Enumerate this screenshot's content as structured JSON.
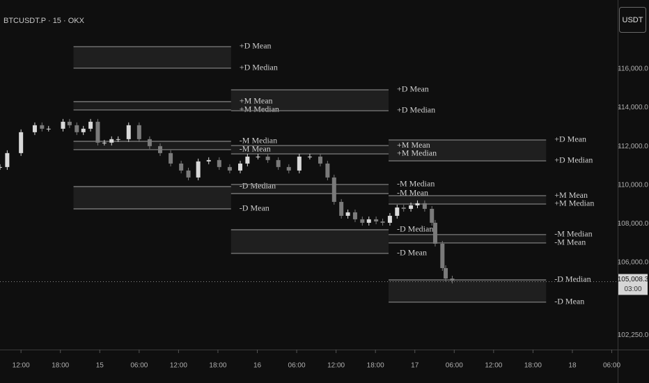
{
  "header": {
    "symbol": "BTCUSDT.P · 15 · OKX",
    "currency_button": "USDT"
  },
  "chart_data": {
    "type": "candlestick",
    "xlim": [
      -3.2,
      90.9
    ],
    "xticks": [
      {
        "value": 0,
        "label": "12:00"
      },
      {
        "value": 6,
        "label": "18:00"
      },
      {
        "value": 12,
        "label": "15"
      },
      {
        "value": 18,
        "label": "06:00"
      },
      {
        "value": 24,
        "label": "12:00"
      },
      {
        "value": 30,
        "label": "18:00"
      },
      {
        "value": 36,
        "label": "16"
      },
      {
        "value": 42,
        "label": "06:00"
      },
      {
        "value": 48,
        "label": "12:00"
      },
      {
        "value": 54,
        "label": "18:00"
      },
      {
        "value": 60,
        "label": "17"
      },
      {
        "value": 66,
        "label": "06:00"
      },
      {
        "value": 72,
        "label": "12:00"
      },
      {
        "value": 78,
        "label": "18:00"
      },
      {
        "value": 84,
        "label": "18"
      },
      {
        "value": 90,
        "label": "06:00"
      }
    ],
    "ylim": [
      101500,
      119560
    ],
    "yticks": [
      {
        "value": 102250,
        "label": "102,250.0"
      },
      {
        "value": 106000,
        "label": "106,000.0"
      },
      {
        "value": 108000,
        "label": "108,000.0"
      },
      {
        "value": 110000,
        "label": "110,000.0"
      },
      {
        "value": 112000,
        "label": "112,000.0"
      },
      {
        "value": 114000,
        "label": "114,000.0"
      },
      {
        "value": 116000,
        "label": "116,000.0"
      }
    ],
    "up_color": "#d9d9d9",
    "down_color": "#7a7a7a",
    "level_color": "#7d7d7d",
    "x": [
      -3.2,
      -2.1,
      0,
      2.1,
      3.2,
      4.2,
      6.4,
      7.4,
      8.5,
      9.5,
      10.6,
      11.7,
      12.7,
      13.8,
      14.8,
      16.4,
      18.0,
      19.6,
      21.2,
      22.8,
      24.4,
      25.5,
      27.0,
      28.6,
      30.2,
      31.8,
      33.4,
      34.5,
      36.1,
      37.6,
      39.2,
      40.8,
      42.4,
      44.0,
      45.6,
      46.7,
      47.7,
      48.8,
      49.8,
      50.9,
      52.0,
      53.0,
      54.1,
      55.1,
      56.2,
      57.3,
      58.3,
      59.4,
      60.4,
      61.5,
      62.6,
      63.1,
      64.2,
      64.7,
      65.7
    ],
    "close": [
      110930,
      111650,
      112730,
      113090,
      112910,
      112910,
      113270,
      113090,
      112730,
      112910,
      113270,
      112190,
      112190,
      112370,
      112370,
      113090,
      112370,
      112010,
      111650,
      111110,
      110750,
      110390,
      111220,
      111290,
      110930,
      110750,
      111110,
      111470,
      111470,
      111290,
      110930,
      110750,
      111470,
      111470,
      111110,
      110390,
      109130,
      108410,
      108590,
      108230,
      108050,
      108230,
      108120,
      108050,
      108410,
      108840,
      108770,
      108950,
      109060,
      108770,
      108050,
      106970,
      105710,
      105170,
      105060
    ],
    "last_price": {
      "value": 105008.3,
      "label": "105,008.3"
    },
    "countdown": "03:00",
    "segments": [
      {
        "start": 8,
        "end": 32,
        "levels": [
          {
            "label": "+D Mean",
            "value": 117150
          },
          {
            "label": "+D Median",
            "value": 116040
          },
          {
            "label": "+M Mean",
            "value": 114310
          },
          {
            "label": "+M Median",
            "value": 113880
          },
          {
            "label": "-M Median",
            "value": 112260
          },
          {
            "label": "-M Mean",
            "value": 111830
          },
          {
            "label": "-D Median",
            "value": 109920
          },
          {
            "label": "-D Mean",
            "value": 108770
          }
        ]
      },
      {
        "start": 32,
        "end": 56,
        "levels": [
          {
            "label": "+D Mean",
            "value": 114920
          },
          {
            "label": "+D Median",
            "value": 113840
          },
          {
            "label": "+M Mean",
            "value": 112040
          },
          {
            "label": "+M Median",
            "value": 111610
          },
          {
            "label": "-M Median",
            "value": 110030
          },
          {
            "label": "-M Mean",
            "value": 109560
          },
          {
            "label": "-D Median",
            "value": 107690
          },
          {
            "label": "-D Mean",
            "value": 106470
          }
        ]
      },
      {
        "start": 56,
        "end": 80,
        "levels": [
          {
            "label": "+D Mean",
            "value": 112330
          },
          {
            "label": "+D Median",
            "value": 111250
          },
          {
            "label": "+M Mean",
            "value": 109450
          },
          {
            "label": "+M Median",
            "value": 109020
          },
          {
            "label": "-M Median",
            "value": 107440
          },
          {
            "label": "-M Mean",
            "value": 107010
          },
          {
            "label": "-D Median",
            "value": 105100
          },
          {
            "label": "-D Mean",
            "value": 103950
          }
        ]
      }
    ]
  }
}
